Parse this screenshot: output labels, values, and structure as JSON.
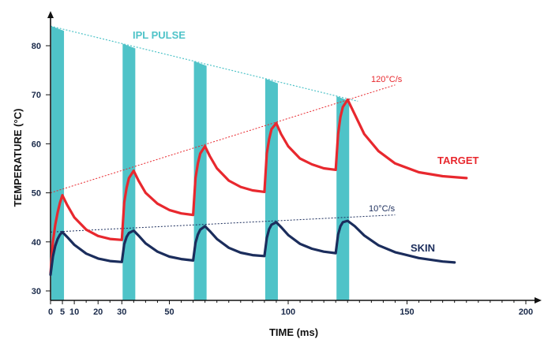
{
  "chart_data": {
    "type": "line",
    "xlabel": "TIME (ms)",
    "ylabel": "TEMPERATURE (°C)",
    "xlim": [
      0,
      200
    ],
    "ylim": [
      28,
      85
    ],
    "x_ticks": [
      0,
      5,
      10,
      20,
      30,
      50,
      100,
      150,
      200
    ],
    "y_ticks": [
      30,
      40,
      50,
      60,
      70,
      80
    ],
    "pulses": {
      "label": "IPL PULSE",
      "color": "#4fc3c8",
      "width_ms": 5,
      "starts_ms": [
        0,
        30,
        60,
        90,
        120
      ],
      "envelope_start": [
        0,
        84
      ],
      "envelope_end": [
        126,
        69
      ]
    },
    "series": [
      {
        "name": "TARGET",
        "color": "#e8282e",
        "trend_label": "120°C/s",
        "trend": [
          [
            0,
            50
          ],
          [
            145,
            72
          ]
        ],
        "points": [
          [
            0,
            33.5
          ],
          [
            1,
            40
          ],
          [
            2,
            43.5
          ],
          [
            3,
            46
          ],
          [
            4,
            48
          ],
          [
            5,
            49.5
          ],
          [
            7,
            47.5
          ],
          [
            10,
            45
          ],
          [
            15,
            42.5
          ],
          [
            20,
            41.2
          ],
          [
            25,
            40.6
          ],
          [
            30,
            40.4
          ],
          [
            31,
            48
          ],
          [
            32,
            51
          ],
          [
            33,
            53
          ],
          [
            35,
            54.5
          ],
          [
            37,
            52.5
          ],
          [
            40,
            50
          ],
          [
            45,
            47.8
          ],
          [
            50,
            46.5
          ],
          [
            55,
            45.8
          ],
          [
            60,
            45.5
          ],
          [
            61,
            53
          ],
          [
            62,
            56
          ],
          [
            63,
            58
          ],
          [
            65,
            59.5
          ],
          [
            67,
            57.5
          ],
          [
            70,
            55
          ],
          [
            75,
            52.5
          ],
          [
            80,
            51.2
          ],
          [
            85,
            50.5
          ],
          [
            90,
            50.2
          ],
          [
            91,
            58
          ],
          [
            92,
            61
          ],
          [
            93,
            63
          ],
          [
            95,
            64.2
          ],
          [
            97,
            62
          ],
          [
            100,
            59.5
          ],
          [
            105,
            57
          ],
          [
            110,
            55.8
          ],
          [
            115,
            55
          ],
          [
            120,
            54.7
          ],
          [
            121,
            62
          ],
          [
            122,
            65.5
          ],
          [
            123,
            67.5
          ],
          [
            125,
            69
          ],
          [
            128,
            66
          ],
          [
            132,
            62
          ],
          [
            138,
            58.5
          ],
          [
            145,
            56
          ],
          [
            155,
            54.2
          ],
          [
            165,
            53.4
          ],
          [
            175,
            53
          ]
        ]
      },
      {
        "name": "SKIN",
        "color": "#1b2d5c",
        "trend_label": "10°C/s",
        "trend": [
          [
            0,
            42
          ],
          [
            145,
            45.5
          ]
        ],
        "points": [
          [
            0,
            33.3
          ],
          [
            1,
            37
          ],
          [
            2,
            39.2
          ],
          [
            3,
            40.6
          ],
          [
            4,
            41.5
          ],
          [
            5,
            42
          ],
          [
            7,
            41
          ],
          [
            10,
            39.4
          ],
          [
            15,
            37.6
          ],
          [
            20,
            36.6
          ],
          [
            25,
            36.1
          ],
          [
            30,
            35.9
          ],
          [
            31,
            39.5
          ],
          [
            32,
            41
          ],
          [
            33,
            41.8
          ],
          [
            35,
            42.3
          ],
          [
            37,
            41.3
          ],
          [
            40,
            39.7
          ],
          [
            45,
            38
          ],
          [
            50,
            37
          ],
          [
            55,
            36.5
          ],
          [
            60,
            36.2
          ],
          [
            61,
            39.8
          ],
          [
            62,
            41.5
          ],
          [
            63,
            42.5
          ],
          [
            65,
            43.2
          ],
          [
            67,
            42.2
          ],
          [
            70,
            40.6
          ],
          [
            75,
            38.8
          ],
          [
            80,
            37.8
          ],
          [
            85,
            37.3
          ],
          [
            90,
            37.1
          ],
          [
            91,
            40.8
          ],
          [
            92,
            42.6
          ],
          [
            93,
            43.5
          ],
          [
            95,
            44
          ],
          [
            97,
            43
          ],
          [
            100,
            41.4
          ],
          [
            105,
            39.6
          ],
          [
            110,
            38.6
          ],
          [
            115,
            38
          ],
          [
            120,
            37.7
          ],
          [
            121,
            41.5
          ],
          [
            122,
            43.2
          ],
          [
            123,
            44
          ],
          [
            125,
            44.3
          ],
          [
            128,
            43.2
          ],
          [
            132,
            41.3
          ],
          [
            138,
            39.3
          ],
          [
            145,
            37.9
          ],
          [
            155,
            36.7
          ],
          [
            165,
            36
          ],
          [
            170,
            35.8
          ]
        ]
      }
    ]
  }
}
